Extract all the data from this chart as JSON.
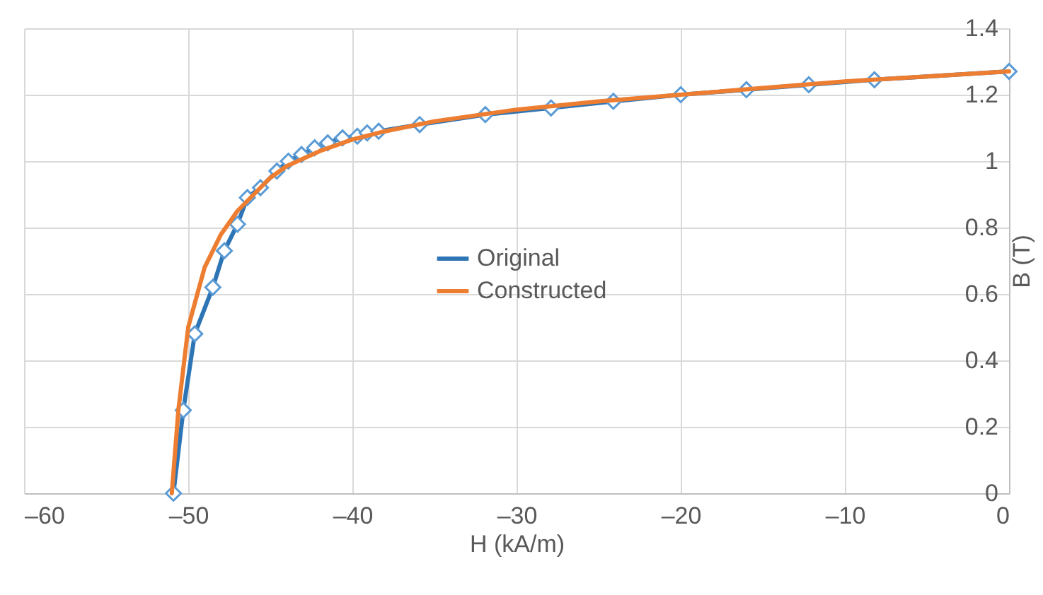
{
  "chart_data": {
    "type": "line",
    "xlabel": "H (kA/m)",
    "ylabel": "B (T)",
    "xlim": [
      -60,
      0
    ],
    "xticks": [
      {
        "value": -60,
        "label": "–60"
      },
      {
        "value": -50,
        "label": "–50"
      },
      {
        "value": -40,
        "label": "–40"
      },
      {
        "value": -30,
        "label": "–30"
      },
      {
        "value": -20,
        "label": "–20"
      },
      {
        "value": -10,
        "label": "–10"
      },
      0
    ],
    "ylim": [
      0,
      1.4
    ],
    "yticks": [
      0,
      0.2,
      0.4,
      0.6,
      0.8,
      1,
      1.2,
      1.4
    ],
    "grid": true,
    "legend": "center",
    "series": [
      {
        "name": "Original",
        "color": "#2e75b6",
        "marker": "diamond",
        "x": [
          -50.9,
          -50.3,
          -49.6,
          -48.5,
          -47.8,
          -47.0,
          -46.4,
          -45.6,
          -44.6,
          -43.9,
          -43.1,
          -42.3,
          -41.5,
          -40.6,
          -39.7,
          -39.1,
          -38.4,
          -35.9,
          -31.9,
          -27.9,
          -24.1,
          -20,
          -16,
          -12.2,
          -8.2,
          0
        ],
        "values": [
          0,
          0.25,
          0.48,
          0.62,
          0.73,
          0.81,
          0.89,
          0.92,
          0.97,
          1.0,
          1.02,
          1.04,
          1.055,
          1.07,
          1.075,
          1.085,
          1.09,
          1.11,
          1.14,
          1.16,
          1.18,
          1.2,
          1.215,
          1.23,
          1.245,
          1.27
        ]
      },
      {
        "name": "Constructed",
        "color": "#ed7d31",
        "marker": "none",
        "x": [
          -51,
          -50.6,
          -50,
          -49,
          -48,
          -47,
          -46,
          -45,
          -44,
          -42,
          -40,
          -38,
          -35,
          -30,
          -25,
          -20,
          -15,
          -10,
          -5,
          0
        ],
        "values": [
          0,
          0.25,
          0.5,
          0.68,
          0.78,
          0.85,
          0.9,
          0.95,
          0.985,
          1.03,
          1.065,
          1.09,
          1.12,
          1.155,
          1.18,
          1.2,
          1.22,
          1.24,
          1.255,
          1.27
        ]
      }
    ]
  }
}
